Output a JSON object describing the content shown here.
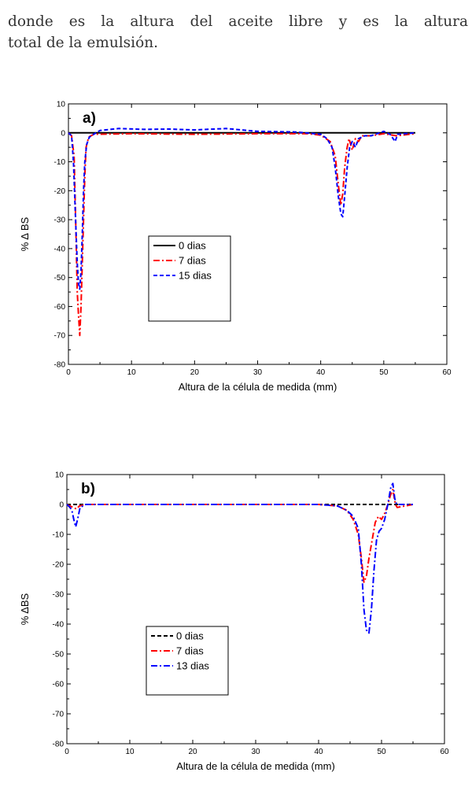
{
  "intro": {
    "line1": "donde  es la altura del aceite libre y  es la altura",
    "line2": "total de la emulsión."
  },
  "chart_data": [
    {
      "type": "line",
      "panel_label": "a)",
      "xlabel": "Altura de la célula de medida (mm)",
      "ylabel": "% Δ BS",
      "xlim": [
        0,
        60
      ],
      "ylim": [
        -80,
        10
      ],
      "xticks": [
        0,
        10,
        20,
        30,
        40,
        50,
        60
      ],
      "yticks": [
        10,
        0,
        -10,
        -20,
        -30,
        -40,
        -50,
        -60,
        -70,
        -80
      ],
      "grid": false,
      "legend_position": "center-left",
      "series": [
        {
          "name": "0 dias",
          "color": "#000000",
          "style": "solid",
          "points": [
            [
              0,
              0
            ],
            [
              55,
              0
            ]
          ]
        },
        {
          "name": "7 dias",
          "color": "#ff0000",
          "style": "dashdot",
          "points": [
            [
              0,
              0
            ],
            [
              0.5,
              -1
            ],
            [
              0.9,
              -8
            ],
            [
              1.2,
              -35
            ],
            [
              1.4,
              -55
            ],
            [
              1.6,
              -63
            ],
            [
              1.8,
              -70
            ],
            [
              2.0,
              -60
            ],
            [
              2.2,
              -45
            ],
            [
              2.4,
              -30
            ],
            [
              2.6,
              -15
            ],
            [
              2.8,
              -5
            ],
            [
              3.2,
              -1.5
            ],
            [
              4,
              -0.5
            ],
            [
              10,
              -0.3
            ],
            [
              20,
              -0.5
            ],
            [
              30,
              -0.3
            ],
            [
              38,
              -0.3
            ],
            [
              40,
              -0.8
            ],
            [
              41.5,
              -3
            ],
            [
              42.3,
              -8
            ],
            [
              42.8,
              -18
            ],
            [
              43.2,
              -25
            ],
            [
              43.5,
              -21
            ],
            [
              43.8,
              -12
            ],
            [
              44.2,
              -5
            ],
            [
              44.5,
              -2
            ],
            [
              45,
              -6
            ],
            [
              45.5,
              -2
            ],
            [
              46,
              -3
            ],
            [
              46.5,
              -1
            ],
            [
              48,
              -1
            ],
            [
              50,
              -0.3
            ],
            [
              52,
              -1
            ],
            [
              55,
              -0.3
            ]
          ]
        },
        {
          "name": "15 dias",
          "color": "#0000ff",
          "style": "dashed",
          "points": [
            [
              0,
              0
            ],
            [
              0.5,
              -1
            ],
            [
              0.8,
              -10
            ],
            [
              1.1,
              -28
            ],
            [
              1.4,
              -45
            ],
            [
              1.6,
              -52
            ],
            [
              1.8,
              -54
            ],
            [
              2.0,
              -48
            ],
            [
              2.2,
              -35
            ],
            [
              2.4,
              -20
            ],
            [
              2.6,
              -10
            ],
            [
              2.9,
              -4
            ],
            [
              3.3,
              -1.5
            ],
            [
              4,
              -0.5
            ],
            [
              5,
              0.8
            ],
            [
              8,
              1.5
            ],
            [
              12,
              1.2
            ],
            [
              16,
              1.3
            ],
            [
              20,
              1
            ],
            [
              25,
              1.5
            ],
            [
              30,
              0.5
            ],
            [
              36,
              0.3
            ],
            [
              40,
              -0.5
            ],
            [
              41,
              -2
            ],
            [
              41.8,
              -5
            ],
            [
              42.3,
              -12
            ],
            [
              42.8,
              -22
            ],
            [
              43.2,
              -28
            ],
            [
              43.5,
              -29
            ],
            [
              43.8,
              -22
            ],
            [
              44.2,
              -12
            ],
            [
              44.6,
              -5
            ],
            [
              45,
              -3
            ],
            [
              45.5,
              -5
            ],
            [
              46,
              -2
            ],
            [
              47,
              -1
            ],
            [
              48,
              -1
            ],
            [
              50,
              0.5
            ],
            [
              51,
              -0.5
            ],
            [
              51.8,
              -3
            ],
            [
              52.2,
              -0.5
            ],
            [
              55,
              0
            ]
          ]
        }
      ]
    },
    {
      "type": "line",
      "panel_label": "b)",
      "xlabel": "Altura de la célula de medida (mm)",
      "ylabel": "% ΔBS",
      "xlim": [
        0,
        60
      ],
      "ylim": [
        -80,
        10
      ],
      "xticks": [
        0,
        10,
        20,
        30,
        40,
        50,
        60
      ],
      "yticks": [
        10,
        0,
        -10,
        -20,
        -30,
        -40,
        -50,
        -60,
        -70,
        -80
      ],
      "grid": false,
      "legend_position": "center-left",
      "series": [
        {
          "name": "0 dias",
          "color": "#000000",
          "style": "dashed",
          "points": [
            [
              0,
              0
            ],
            [
              55,
              0
            ]
          ]
        },
        {
          "name": "7 dias",
          "color": "#ff0000",
          "style": "dashdot",
          "points": [
            [
              0,
              0
            ],
            [
              1,
              -1
            ],
            [
              1.5,
              -1.5
            ],
            [
              2,
              -0.5
            ],
            [
              3,
              0
            ],
            [
              20,
              0
            ],
            [
              30,
              0
            ],
            [
              40,
              0
            ],
            [
              43,
              -0.5
            ],
            [
              44.5,
              -2
            ],
            [
              45.5,
              -5
            ],
            [
              46.3,
              -10
            ],
            [
              46.8,
              -18
            ],
            [
              47.2,
              -26
            ],
            [
              47.6,
              -24
            ],
            [
              48,
              -18
            ],
            [
              48.5,
              -12
            ],
            [
              49,
              -6
            ],
            [
              49.5,
              -4
            ],
            [
              50,
              -5
            ],
            [
              50.5,
              -3
            ],
            [
              51,
              0
            ],
            [
              51.4,
              3
            ],
            [
              51.8,
              5
            ],
            [
              52.2,
              0
            ],
            [
              52.5,
              -1
            ],
            [
              55,
              0
            ]
          ]
        },
        {
          "name": "13 dias",
          "color": "#0000ff",
          "style": "dashdot",
          "points": [
            [
              0,
              0
            ],
            [
              0.5,
              -1
            ],
            [
              0.8,
              -2
            ],
            [
              1.1,
              -5
            ],
            [
              1.4,
              -7.5
            ],
            [
              1.7,
              -5
            ],
            [
              2.1,
              -1
            ],
            [
              3,
              0
            ],
            [
              10,
              0
            ],
            [
              20,
              0
            ],
            [
              30,
              0
            ],
            [
              40,
              0
            ],
            [
              43,
              -0.5
            ],
            [
              44.5,
              -2
            ],
            [
              45.5,
              -4
            ],
            [
              46.3,
              -8
            ],
            [
              46.8,
              -20
            ],
            [
              47.2,
              -35
            ],
            [
              47.6,
              -42
            ],
            [
              48,
              -43
            ],
            [
              48.4,
              -35
            ],
            [
              48.8,
              -22
            ],
            [
              49.2,
              -12
            ],
            [
              49.6,
              -9
            ],
            [
              50,
              -8
            ],
            [
              50.5,
              -5
            ],
            [
              51,
              0
            ],
            [
              51.5,
              6
            ],
            [
              51.8,
              7
            ],
            [
              52.1,
              2
            ],
            [
              52.4,
              0
            ],
            [
              55,
              0
            ]
          ]
        }
      ]
    }
  ]
}
